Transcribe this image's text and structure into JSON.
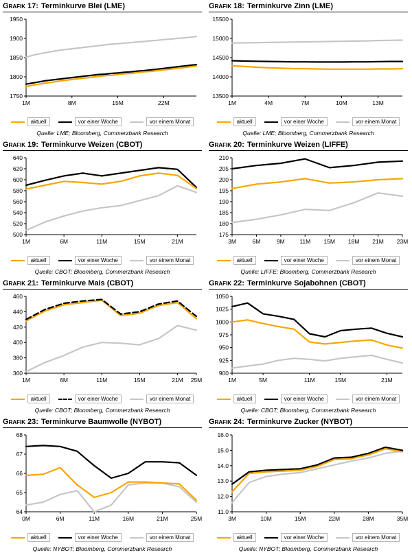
{
  "page": {
    "background": "#ffffff"
  },
  "colors": {
    "aktuell": "#F7A600",
    "woche": "#000000",
    "monat": "#C6C6C6",
    "axis": "#000000"
  },
  "chart_data": [
    {
      "type": "line",
      "title_prefix": "Grafik 17:",
      "title": "Terminkurve Blei (LME)",
      "source": "Quelle: LME; Bloomberg, Commerzbank Research",
      "ylim": [
        1750,
        1950
      ],
      "y_tick_labels": [
        "1750",
        "1800",
        "1850",
        "1900",
        "1950"
      ],
      "y_tick_values": [
        1750,
        1800,
        1850,
        1900,
        1950
      ],
      "x_ticks": [
        {
          "label": "1M",
          "i": 0
        },
        {
          "label": "8M",
          "i": 7
        },
        {
          "label": "15M",
          "i": 14
        },
        {
          "label": "22M",
          "i": 21
        }
      ],
      "series": [
        {
          "label": "vor einem Monat",
          "color_key": "monat",
          "dash": false,
          "legend_pos": 2,
          "values": [
            1851,
            1856,
            1860,
            1863,
            1866,
            1869,
            1871,
            1873,
            1875,
            1877,
            1879,
            1881,
            1883,
            1885,
            1886,
            1888,
            1889,
            1891,
            1892,
            1894,
            1895,
            1897,
            1898,
            1900,
            1901,
            1903,
            1905
          ]
        },
        {
          "label": "vor einer Woche",
          "color_key": "woche",
          "dash": false,
          "legend_pos": 1,
          "values": [
            1781,
            1784,
            1787,
            1790,
            1792,
            1794,
            1796,
            1798,
            1800,
            1802,
            1804,
            1806,
            1807,
            1809,
            1810,
            1812,
            1813,
            1815,
            1816,
            1818,
            1820,
            1822,
            1824,
            1826,
            1828,
            1830,
            1832
          ]
        },
        {
          "label": "aktuell",
          "color_key": "aktuell",
          "dash": false,
          "legend_pos": 0,
          "values": [
            1775,
            1778,
            1781,
            1784,
            1786,
            1789,
            1791,
            1793,
            1795,
            1797,
            1799,
            1801,
            1803,
            1804,
            1806,
            1808,
            1809,
            1811,
            1813,
            1814,
            1816,
            1818,
            1820,
            1822,
            1824,
            1826,
            1828
          ]
        }
      ]
    },
    {
      "type": "line",
      "title_prefix": "Grafik 18:",
      "title": "Terminkurve Zinn (LME)",
      "source": "Quelle: LME; Bloomberg, Commerzbank Research",
      "ylim": [
        13500,
        15500
      ],
      "y_tick_labels": [
        "13500",
        "14000",
        "14500",
        "15000",
        "15500"
      ],
      "y_tick_values": [
        13500,
        14000,
        14500,
        15000,
        15500
      ],
      "x_ticks": [
        {
          "label": "1M",
          "i": 0
        },
        {
          "label": "4M",
          "i": 3
        },
        {
          "label": "7M",
          "i": 6
        },
        {
          "label": "10M",
          "i": 9
        },
        {
          "label": "13M",
          "i": 12
        }
      ],
      "series": [
        {
          "label": "vor einem Monat",
          "color_key": "monat",
          "dash": false,
          "legend_pos": 2,
          "values": [
            14880,
            14885,
            14890,
            14895,
            14900,
            14905,
            14910,
            14915,
            14920,
            14925,
            14930,
            14935,
            14945,
            14950,
            14955
          ]
        },
        {
          "label": "vor einer Woche",
          "color_key": "woche",
          "dash": false,
          "legend_pos": 1,
          "values": [
            14420,
            14410,
            14405,
            14400,
            14395,
            14390,
            14390,
            14385,
            14385,
            14385,
            14390,
            14390,
            14395,
            14400,
            14400
          ]
        },
        {
          "label": "aktuell",
          "color_key": "aktuell",
          "dash": false,
          "legend_pos": 0,
          "values": [
            14290,
            14270,
            14250,
            14235,
            14225,
            14215,
            14210,
            14205,
            14200,
            14200,
            14200,
            14200,
            14205,
            14205,
            14210
          ]
        }
      ]
    },
    {
      "type": "line",
      "title_prefix": "Grafik 19:",
      "title": "Terminkurve Weizen (CBOT)",
      "source": "Quelle: CBOT; Bloomberg, Commerzbank Research",
      "ylim": [
        500,
        640
      ],
      "y_tick_labels": [
        "500",
        "520",
        "540",
        "560",
        "580",
        "600",
        "620",
        "640"
      ],
      "y_tick_values": [
        500,
        520,
        540,
        560,
        580,
        600,
        620,
        640
      ],
      "x_ticks": [
        {
          "label": "1M",
          "i": 0
        },
        {
          "label": "6M",
          "i": 2
        },
        {
          "label": "11M",
          "i": 4
        },
        {
          "label": "15M",
          "i": 6
        },
        {
          "label": "21M",
          "i": 8
        }
      ],
      "series": [
        {
          "label": "vor einem Monat",
          "color_key": "monat",
          "dash": false,
          "legend_pos": 2,
          "values": [
            508,
            523,
            534,
            543,
            549,
            553,
            562,
            571,
            589,
            577
          ]
        },
        {
          "label": "vor einer Woche",
          "color_key": "woche",
          "dash": false,
          "legend_pos": 1,
          "values": [
            590,
            599,
            607,
            612,
            607,
            612,
            617,
            622,
            619,
            586
          ]
        },
        {
          "label": "aktuell",
          "color_key": "aktuell",
          "dash": false,
          "legend_pos": 0,
          "values": [
            583,
            590,
            597,
            595,
            592,
            597,
            607,
            612,
            608,
            584
          ]
        }
      ]
    },
    {
      "type": "line",
      "title_prefix": "Grafik 20:",
      "title": "Terminkurve Weizen (LIFFE)",
      "source": "Quelle: LIFFE; Bloomberg, Commerzbank Research",
      "ylim": [
        175,
        210
      ],
      "y_tick_labels": [
        "175",
        "180",
        "185",
        "190",
        "195",
        "200",
        "205",
        "210"
      ],
      "y_tick_values": [
        175,
        180,
        185,
        190,
        195,
        200,
        205,
        210
      ],
      "x_ticks": [
        {
          "label": "3M",
          "i": 0
        },
        {
          "label": "6M",
          "i": 1
        },
        {
          "label": "9M",
          "i": 2
        },
        {
          "label": "11M",
          "i": 3
        },
        {
          "label": "15M",
          "i": 4
        },
        {
          "label": "18M",
          "i": 5
        },
        {
          "label": "21M",
          "i": 6
        },
        {
          "label": "23M",
          "i": 7
        }
      ],
      "series": [
        {
          "label": "vor einem Monat",
          "color_key": "monat",
          "dash": false,
          "legend_pos": 2,
          "values": [
            180.5,
            182,
            184,
            186.5,
            186,
            189.5,
            194,
            192.5
          ]
        },
        {
          "label": "vor einer Woche",
          "color_key": "woche",
          "dash": false,
          "legend_pos": 1,
          "values": [
            205,
            206.5,
            207.5,
            209.5,
            205.5,
            206.5,
            208,
            208.5
          ]
        },
        {
          "label": "aktuell",
          "color_key": "aktuell",
          "dash": false,
          "legend_pos": 0,
          "values": [
            196,
            198,
            199,
            200.5,
            198.5,
            199,
            200,
            200.5
          ]
        }
      ]
    },
    {
      "type": "line",
      "title_prefix": "Grafik 21:",
      "title": "Terminkurve Mais (CBOT)",
      "source": "Quelle: CBOT; Bloomberg, Commerzbank Research",
      "ylim": [
        360,
        460
      ],
      "y_tick_labels": [
        "360",
        "380",
        "400",
        "420",
        "440",
        "460"
      ],
      "y_tick_values": [
        360,
        380,
        400,
        420,
        440,
        460
      ],
      "x_ticks": [
        {
          "label": "1M",
          "i": 0
        },
        {
          "label": "6M",
          "i": 2
        },
        {
          "label": "11M",
          "i": 4
        },
        {
          "label": "15M",
          "i": 6
        },
        {
          "label": "21M",
          "i": 8
        },
        {
          "label": "25M",
          "i": 9
        }
      ],
      "series": [
        {
          "label": "vor einem Monat",
          "color_key": "monat",
          "dash": false,
          "legend_pos": 2,
          "values": [
            362,
            374,
            383,
            394,
            400,
            399,
            397,
            405,
            422,
            416
          ]
        },
        {
          "label": "aktuell",
          "color_key": "aktuell",
          "dash": false,
          "legend_pos": 0,
          "values": [
            428,
            441,
            449,
            452,
            455,
            435,
            438,
            448,
            452,
            431
          ]
        },
        {
          "label": "vor einer Woche",
          "color_key": "woche",
          "dash": true,
          "legend_pos": 1,
          "values": [
            430,
            443,
            451,
            454,
            456,
            437,
            440,
            450,
            454,
            434
          ]
        }
      ]
    },
    {
      "type": "line",
      "title_prefix": "Grafik 22:",
      "title": "Terminkurve Sojabohnen (CBOT)",
      "source": "Quelle: CBOT; Bloomberg, Commerzbank Research",
      "ylim": [
        900,
        1050
      ],
      "y_tick_labels": [
        "900",
        "925",
        "950",
        "975",
        "1000",
        "1025",
        "1050"
      ],
      "y_tick_values": [
        900,
        925,
        950,
        975,
        1000,
        1025,
        1050
      ],
      "x_ticks": [
        {
          "label": "1M",
          "i": 0
        },
        {
          "label": "5M",
          "i": 2
        },
        {
          "label": "11M",
          "i": 5
        },
        {
          "label": "15M",
          "i": 7
        },
        {
          "label": "21M",
          "i": 10
        }
      ],
      "series": [
        {
          "label": "vor einem Monat",
          "color_key": "monat",
          "dash": false,
          "legend_pos": 2,
          "values": [
            910,
            914,
            918,
            925,
            929,
            927,
            924,
            929,
            932,
            935,
            927,
            920
          ]
        },
        {
          "label": "vor einer Woche",
          "color_key": "woche",
          "dash": false,
          "legend_pos": 1,
          "values": [
            1030,
            1037,
            1016,
            1011,
            1005,
            977,
            971,
            983,
            986,
            988,
            978,
            971
          ]
        },
        {
          "label": "aktuell",
          "color_key": "aktuell",
          "dash": false,
          "legend_pos": 0,
          "values": [
            1000,
            1004,
            997,
            991,
            986,
            961,
            957,
            960,
            963,
            965,
            955,
            949
          ]
        }
      ]
    },
    {
      "type": "line",
      "title_prefix": "Grafik 23:",
      "title": "Terminkurve Baumwolle (NYBOT)",
      "source": "Quelle: NYBOT; Bloomberg, Commerzbank Research",
      "ylim": [
        64,
        68
      ],
      "y_tick_labels": [
        "64",
        "65",
        "66",
        "67",
        "68"
      ],
      "y_tick_values": [
        64,
        65,
        66,
        67,
        68
      ],
      "x_ticks": [
        {
          "label": "0M",
          "i": 0
        },
        {
          "label": "6M",
          "i": 2
        },
        {
          "label": "11M",
          "i": 4
        },
        {
          "label": "16M",
          "i": 6
        },
        {
          "label": "21M",
          "i": 8
        },
        {
          "label": "25M",
          "i": 10
        }
      ],
      "series": [
        {
          "label": "vor einem Monat",
          "color_key": "monat",
          "dash": false,
          "legend_pos": 2,
          "values": [
            64.35,
            64.5,
            64.9,
            65.1,
            64.0,
            64.35,
            65.4,
            65.5,
            65.5,
            65.3,
            64.5
          ]
        },
        {
          "label": "vor einer Woche",
          "color_key": "woche",
          "dash": false,
          "legend_pos": 1,
          "values": [
            67.4,
            67.45,
            67.4,
            67.15,
            66.4,
            65.75,
            66.0,
            66.6,
            66.6,
            66.55,
            65.9
          ]
        },
        {
          "label": "aktuell",
          "color_key": "aktuell",
          "dash": false,
          "legend_pos": 0,
          "values": [
            65.9,
            65.95,
            66.3,
            65.4,
            64.75,
            65.0,
            65.55,
            65.55,
            65.5,
            65.45,
            64.6
          ]
        }
      ]
    },
    {
      "type": "line",
      "title_prefix": "Grafik 24:",
      "title": "Terminkurve Zucker (NYBOT)",
      "source": "Quelle: NYBOT; Bloomberg, Commerzbank Research",
      "ylim": [
        11,
        16
      ],
      "y_tick_labels": [
        "11.0",
        "12.0",
        "13.0",
        "14.0",
        "15.0",
        "16.0"
      ],
      "y_tick_values": [
        11,
        12,
        13,
        14,
        15,
        16
      ],
      "x_ticks": [
        {
          "label": "3M",
          "i": 0
        },
        {
          "label": "10M",
          "i": 2
        },
        {
          "label": "15M",
          "i": 4
        },
        {
          "label": "22M",
          "i": 6
        },
        {
          "label": "28M",
          "i": 8
        },
        {
          "label": "35M",
          "i": 10
        }
      ],
      "series": [
        {
          "label": "vor einem Monat",
          "color_key": "monat",
          "dash": false,
          "legend_pos": 2,
          "values": [
            11.6,
            12.9,
            13.3,
            13.45,
            13.55,
            13.8,
            14.05,
            14.3,
            14.5,
            14.8,
            14.95
          ]
        },
        {
          "label": "vor einer Woche",
          "color_key": "woche",
          "dash": false,
          "legend_pos": 1,
          "values": [
            12.8,
            13.6,
            13.7,
            13.75,
            13.8,
            14.05,
            14.5,
            14.55,
            14.8,
            15.2,
            15.0
          ]
        },
        {
          "label": "aktuell",
          "color_key": "aktuell",
          "dash": false,
          "legend_pos": 0,
          "values": [
            12.3,
            13.5,
            13.6,
            13.65,
            13.7,
            13.95,
            14.4,
            14.45,
            14.7,
            15.1,
            14.9
          ]
        }
      ]
    }
  ]
}
